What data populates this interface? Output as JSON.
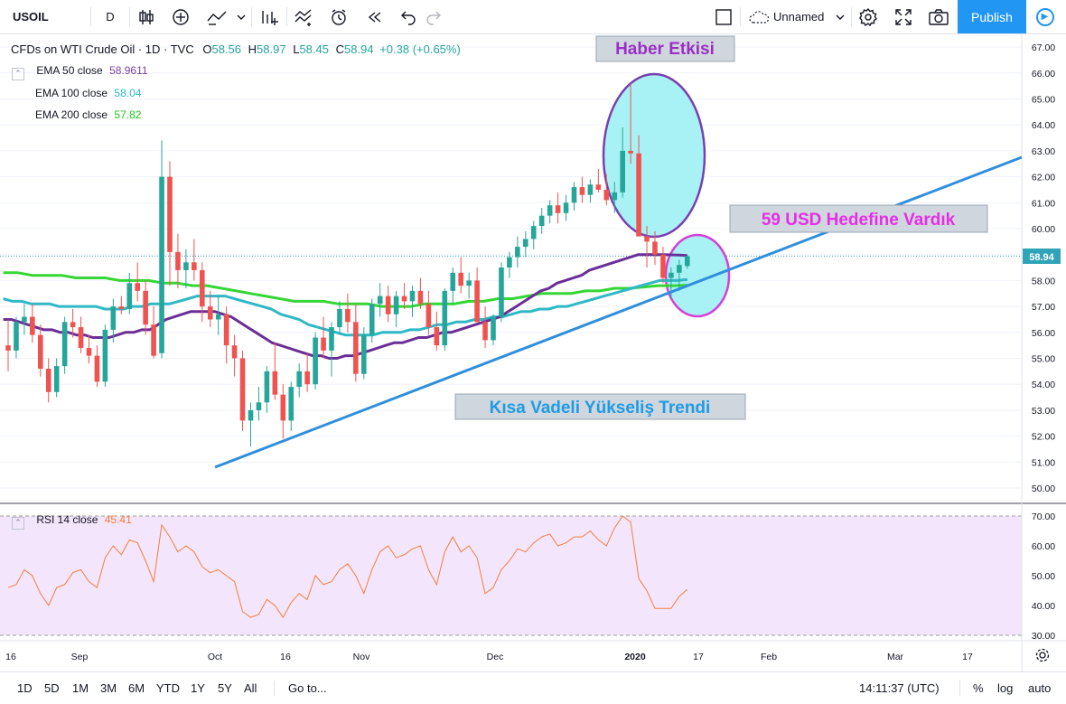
{
  "toolbar": {
    "symbol": "USOIL",
    "interval": "D",
    "layout_name": "Unnamed",
    "publish_label": "Publish"
  },
  "header": {
    "title": "CFDs on WTI Crude Oil · 1D · TVC",
    "open_label": "O",
    "open": "58.56",
    "high_label": "H",
    "high": "58.97",
    "low_label": "L",
    "low": "58.45",
    "close_label": "C",
    "close": "58.94",
    "change": "+0.38 (+0.65%)"
  },
  "indicators": [
    {
      "label": "EMA 50 close",
      "value": "58.9611",
      "color": "#7b3fa0"
    },
    {
      "label": "EMA 100 close",
      "value": "58.04",
      "color": "#2fb8c6"
    },
    {
      "label": "EMA 200 close",
      "value": "57.82",
      "color": "#35d635"
    }
  ],
  "rsi": {
    "label": "RSI 14 close",
    "value": "45.41",
    "color": "#f57f3b"
  },
  "annotations": {
    "news": "Haber Etkisi",
    "target": "59 USD Hedefine Vardık",
    "trend": "Kısa Vadeli Yükseliş Trendi"
  },
  "price_label": "58.94",
  "time_axis": [
    "16",
    "Sep",
    "Oct",
    "16",
    "Nov",
    "Dec",
    "2020",
    "17",
    "Feb",
    "Mar",
    "17"
  ],
  "bottombar": {
    "ranges": [
      "1D",
      "5D",
      "1M",
      "3M",
      "6M",
      "YTD",
      "1Y",
      "5Y",
      "All"
    ],
    "goto": "Go to...",
    "time": "14:11:37 (UTC)",
    "percent": "%",
    "log": "log",
    "auto": "auto"
  },
  "colors": {
    "up": "#26a69a",
    "down": "#ef5350",
    "trendline": "#2f8fdc",
    "news_ellipse_fill": "#a8f2f5",
    "news_ellipse_stroke": "#7a3fb0",
    "target_ellipse_stroke": "#d63fd8",
    "rsi_band": "#f3e5fb"
  },
  "chart_data": {
    "type": "candlestick",
    "price_axis": {
      "ticks": [
        50,
        51,
        52,
        53,
        54,
        55,
        56,
        57,
        58,
        59,
        60,
        61,
        62,
        63,
        64,
        65,
        66,
        67
      ],
      "range": [
        49.6,
        67.3
      ]
    },
    "rsi_axis": {
      "ticks": [
        30,
        40,
        50,
        60,
        70
      ],
      "range": [
        28,
        73
      ],
      "band": [
        30,
        70
      ]
    },
    "last_close": 58.94,
    "candles": [
      [
        55.5,
        56.5,
        54.5,
        55.3
      ],
      [
        55.3,
        56.6,
        55,
        56.4
      ],
      [
        56.4,
        57.1,
        55.9,
        56.6
      ],
      [
        56.6,
        57.1,
        55.6,
        55.9
      ],
      [
        55.9,
        56.3,
        54.3,
        54.6
      ],
      [
        54.6,
        55,
        53.3,
        53.7
      ],
      [
        53.7,
        55,
        53.5,
        54.7
      ],
      [
        54.7,
        56.6,
        54.4,
        56.4
      ],
      [
        56.4,
        56.9,
        55.8,
        56.2
      ],
      [
        56.2,
        56.6,
        55.2,
        55.4
      ],
      [
        55.4,
        55.9,
        54.8,
        55.1
      ],
      [
        55.1,
        55.5,
        53.9,
        54.1
      ],
      [
        54.1,
        56.3,
        53.9,
        56.1
      ],
      [
        56.1,
        57.3,
        55.6,
        57.0
      ],
      [
        57.0,
        57.4,
        56.7,
        56.9
      ],
      [
        56.9,
        58.3,
        56.7,
        57.9
      ],
      [
        57.9,
        58.7,
        57.2,
        57.6
      ],
      [
        57.6,
        58.0,
        55.9,
        56.3
      ],
      [
        56.3,
        57.0,
        55.0,
        55.1
      ],
      [
        55.2,
        63.4,
        55.0,
        62.0
      ],
      [
        62.0,
        62.6,
        57.8,
        59.1
      ],
      [
        59.1,
        59.8,
        57.7,
        58.4
      ],
      [
        58.4,
        59.2,
        57.7,
        58.7
      ],
      [
        58.7,
        59.6,
        58.0,
        58.4
      ],
      [
        58.4,
        58.7,
        56.4,
        57.0
      ],
      [
        57.0,
        57.6,
        56.2,
        56.5
      ],
      [
        56.5,
        57.4,
        55.9,
        56.7
      ],
      [
        56.7,
        57.0,
        54.8,
        55.5
      ],
      [
        55.5,
        55.9,
        54.3,
        55.0
      ],
      [
        55.0,
        55.3,
        52.2,
        52.6
      ],
      [
        52.6,
        53.3,
        51.6,
        53.0
      ],
      [
        53.0,
        53.9,
        52.6,
        53.3
      ],
      [
        53.3,
        54.7,
        52.9,
        54.5
      ],
      [
        54.5,
        55.6,
        53.4,
        53.6
      ],
      [
        53.6,
        54.0,
        51.9,
        52.6
      ],
      [
        52.6,
        54.1,
        52.2,
        53.9
      ],
      [
        53.9,
        54.8,
        53.5,
        54.5
      ],
      [
        54.5,
        55.2,
        53.7,
        54.0
      ],
      [
        54.0,
        56.0,
        53.8,
        55.8
      ],
      [
        55.8,
        56.6,
        55.0,
        55.3
      ],
      [
        55.3,
        56.4,
        54.3,
        56.2
      ],
      [
        56.2,
        57.2,
        55.9,
        56.9
      ],
      [
        56.9,
        57.5,
        56.0,
        56.4
      ],
      [
        56.4,
        57.1,
        54.1,
        54.4
      ],
      [
        54.4,
        56.2,
        54.2,
        55.9
      ],
      [
        55.9,
        57.3,
        55.6,
        57.1
      ],
      [
        57.1,
        57.9,
        56.6,
        57.4
      ],
      [
        57.4,
        57.8,
        56.4,
        56.7
      ],
      [
        56.7,
        57.6,
        56.2,
        57.4
      ],
      [
        57.4,
        57.9,
        56.9,
        57.2
      ],
      [
        57.2,
        57.8,
        56.6,
        57.6
      ],
      [
        57.6,
        58.1,
        56.9,
        57.1
      ],
      [
        57.1,
        57.6,
        55.9,
        56.2
      ],
      [
        56.2,
        56.8,
        55.3,
        55.5
      ],
      [
        55.5,
        57.7,
        55.3,
        57.6
      ],
      [
        57.6,
        58.5,
        57.1,
        58.3
      ],
      [
        58.3,
        58.9,
        57.5,
        57.8
      ],
      [
        57.8,
        58.3,
        57.3,
        58.0
      ],
      [
        58.0,
        58.5,
        56.4,
        56.4
      ],
      [
        56.4,
        57.0,
        55.4,
        55.7
      ],
      [
        55.7,
        56.7,
        55.5,
        56.6
      ],
      [
        56.6,
        58.7,
        56.4,
        58.5
      ],
      [
        58.5,
        59.1,
        58.1,
        58.9
      ],
      [
        58.9,
        59.7,
        58.5,
        59.3
      ],
      [
        59.3,
        59.9,
        58.9,
        59.6
      ],
      [
        59.6,
        60.3,
        59.2,
        60.1
      ],
      [
        60.1,
        60.8,
        59.8,
        60.5
      ],
      [
        60.5,
        61.1,
        60.2,
        60.9
      ],
      [
        60.9,
        61.4,
        60.2,
        60.6
      ],
      [
        60.6,
        61.3,
        60.3,
        61.0
      ],
      [
        61.0,
        61.8,
        60.7,
        61.6
      ],
      [
        61.6,
        62.0,
        61.0,
        61.3
      ],
      [
        61.3,
        61.9,
        61.0,
        61.7
      ],
      [
        61.7,
        62.3,
        61.4,
        61.5
      ],
      [
        61.5,
        62.1,
        60.9,
        61.1
      ],
      [
        61.1,
        61.8,
        60.6,
        61.4
      ],
      [
        61.4,
        63.9,
        61.2,
        63.0
      ],
      [
        63.0,
        65.6,
        62.5,
        62.9
      ],
      [
        62.9,
        63.6,
        59.7,
        59.7
      ],
      [
        59.7,
        60.1,
        58.5,
        59.5
      ],
      [
        59.5,
        59.9,
        58.6,
        59.0
      ],
      [
        59.0,
        59.3,
        57.9,
        58.1
      ],
      [
        58.1,
        58.5,
        57.3,
        58.3
      ],
      [
        58.3,
        58.8,
        57.6,
        58.6
      ],
      [
        58.56,
        58.97,
        58.45,
        58.94
      ]
    ],
    "ema50": [
      56.5,
      56.5,
      56.4,
      56.3,
      56.2,
      56.1,
      56.1,
      56.0,
      56.0,
      55.9,
      55.9,
      55.8,
      55.8,
      55.8,
      55.9,
      56.0,
      56.0,
      56.1,
      56.1,
      56.3,
      56.5,
      56.6,
      56.7,
      56.8,
      56.8,
      56.8,
      56.8,
      56.7,
      56.6,
      56.4,
      56.2,
      56.0,
      55.8,
      55.6,
      55.5,
      55.4,
      55.3,
      55.2,
      55.1,
      55.1,
      55.0,
      55.0,
      55.1,
      55.1,
      55.2,
      55.3,
      55.4,
      55.5,
      55.6,
      55.6,
      55.7,
      55.8,
      55.8,
      55.9,
      56.0,
      56.0,
      56.1,
      56.2,
      56.3,
      56.4,
      56.5,
      56.6,
      56.8,
      57.0,
      57.2,
      57.4,
      57.6,
      57.7,
      57.9,
      58.0,
      58.1,
      58.2,
      58.4,
      58.5,
      58.6,
      58.7,
      58.8,
      58.9,
      59.0,
      59.0,
      59.0,
      59.0,
      58.99,
      58.98,
      58.96
    ],
    "ema100": [
      57.3,
      57.2,
      57.2,
      57.1,
      57.1,
      57.1,
      57.0,
      57.0,
      57.0,
      57.0,
      57.0,
      56.9,
      56.9,
      56.9,
      57.0,
      57.0,
      57.1,
      57.1,
      57.1,
      57.2,
      57.3,
      57.4,
      57.4,
      57.4,
      57.4,
      57.3,
      57.2,
      57.1,
      57.0,
      56.9,
      56.7,
      56.6,
      56.5,
      56.3,
      56.2,
      56.1,
      56.0,
      55.9,
      55.9,
      55.9,
      55.9,
      56.0,
      56.0,
      56.0,
      56.1,
      56.1,
      56.2,
      56.3,
      56.3,
      56.4,
      56.4,
      56.5,
      56.5,
      56.6,
      56.6,
      56.7,
      56.8,
      56.8,
      56.9,
      56.9,
      57.0,
      57.0,
      57.1,
      57.2,
      57.3,
      57.4,
      57.5,
      57.6,
      57.7,
      57.8,
      57.9,
      58.0,
      58.0,
      58.0,
      58.04
    ],
    "ema200": [
      58.3,
      58.3,
      58.2,
      58.2,
      58.2,
      58.1,
      58.1,
      58.1,
      58.0,
      58.0,
      58.0,
      57.9,
      57.9,
      57.8,
      57.8,
      57.7,
      57.6,
      57.5,
      57.4,
      57.3,
      57.2,
      57.2,
      57.2,
      57.1,
      57.1,
      57.1,
      57.0,
      57.0,
      57.0,
      57.1,
      57.1,
      57.1,
      57.2,
      57.2,
      57.3,
      57.3,
      57.4,
      57.5,
      57.5,
      57.5,
      57.6,
      57.6,
      57.7,
      57.7,
      57.75,
      57.8,
      57.8,
      57.82
    ],
    "rsi_values": [
      46,
      47,
      52,
      50,
      44,
      40,
      46,
      47,
      51,
      52,
      48,
      46,
      56,
      60,
      57,
      62,
      61,
      55,
      48,
      67,
      63,
      58,
      60,
      58,
      53,
      51,
      52,
      50,
      48,
      38,
      36,
      37,
      42,
      40,
      36,
      41,
      44,
      42,
      50,
      47,
      48,
      52,
      54,
      50,
      44,
      52,
      58,
      60,
      56,
      57,
      59,
      60,
      52,
      47,
      58,
      63,
      58,
      60,
      56,
      44,
      46,
      52,
      55,
      59,
      58,
      61,
      63,
      64,
      60,
      61,
      63,
      63,
      65,
      62,
      60,
      66,
      70,
      68,
      49,
      45,
      39,
      39,
      39,
      43,
      45.41
    ]
  }
}
